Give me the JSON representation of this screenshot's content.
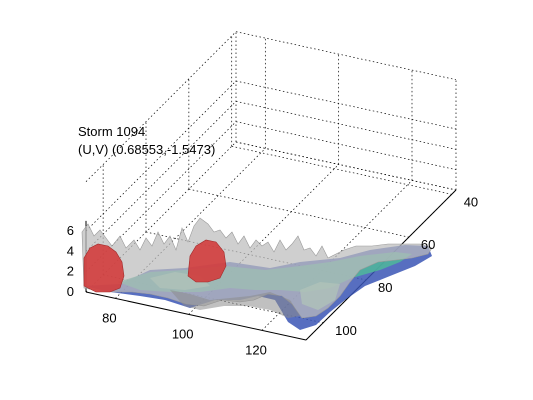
{
  "figure": {
    "title_line1": "Storm 1094",
    "title_line2": "(U,V) (0.68553,-1.5473)"
  },
  "chart_data": {
    "type": "3d-surface",
    "title": [
      "Storm 1094",
      "(U,V) (0.68553,-1.5473)"
    ],
    "x_axis": {
      "ticks": [
        80,
        100,
        120
      ],
      "range": [
        72,
        132
      ]
    },
    "y_axis": {
      "ticks": [
        40,
        60,
        80,
        100
      ],
      "range": [
        38,
        108
      ]
    },
    "z_axis": {
      "ticks": [
        0,
        2,
        4,
        6
      ],
      "range": [
        0,
        7
      ]
    },
    "grid": true,
    "colors": {
      "storm_core": "#d23c3c",
      "envelope": "#bdbdbd",
      "low_field": "#3a55b5",
      "mid_field": "#4fb89a",
      "grid": "#000000"
    }
  }
}
